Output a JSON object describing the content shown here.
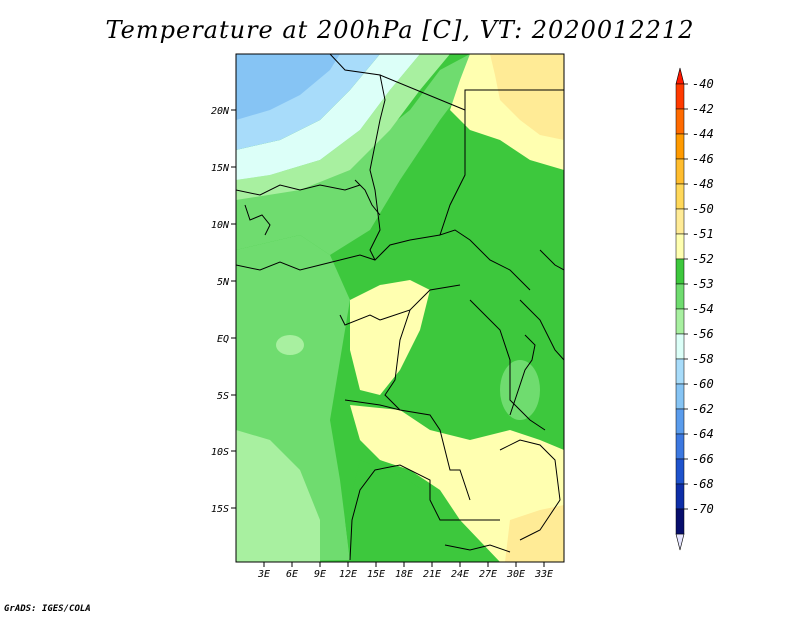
{
  "title": "Temperature at 200hPa [C], VT: 2020012212",
  "credit": "GrADS: IGES/COLA",
  "map": {
    "lat_labels": [
      "20N",
      "15N",
      "10N",
      "5N",
      "EQ",
      "5S",
      "10S",
      "15S"
    ],
    "lon_labels": [
      "3E",
      "6E",
      "9E",
      "12E",
      "15E",
      "18E",
      "21E",
      "24E",
      "27E",
      "30E",
      "33E"
    ]
  },
  "colorbar": {
    "labels": [
      "-40",
      "-42",
      "-44",
      "-46",
      "-48",
      "-50",
      "-51",
      "-52",
      "-53",
      "-54",
      "-56",
      "-58",
      "-60",
      "-62",
      "-64",
      "-66",
      "-68",
      "-70"
    ],
    "colors": [
      "#ff3a00",
      "#ff6a00",
      "#ff9a00",
      "#ffbd2e",
      "#ffd85a",
      "#ffeb96",
      "#ffffb0",
      "#3dc83d",
      "#6fdc6f",
      "#a8f0a0",
      "#dcfff8",
      "#a8dcfa",
      "#86c4f4",
      "#5a9cec",
      "#3c78e0",
      "#1e52cc",
      "#0e2ea8",
      "#070e6c"
    ],
    "top_cap_color": "#ff1800",
    "bottom_cap_color": "#e6e6ff"
  }
}
